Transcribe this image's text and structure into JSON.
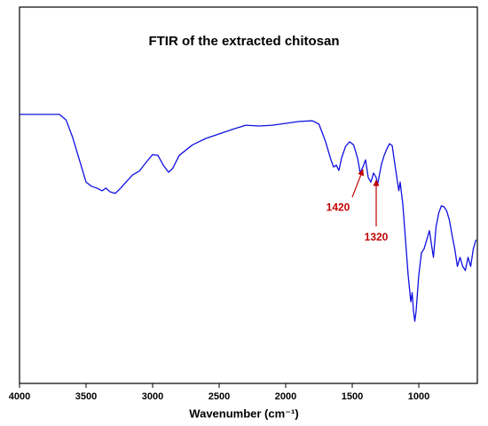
{
  "chart_data": {
    "type": "line",
    "title": "FTIR of the extracted chitosan",
    "xlabel": "Wavenumber (cm⁻¹)",
    "color": "#1010e0",
    "x": [
      4000,
      3700,
      3650,
      3600,
      3550,
      3500,
      3460,
      3420,
      3380,
      3350,
      3320,
      3280,
      3240,
      3200,
      3150,
      3100,
      3050,
      3000,
      2960,
      2920,
      2880,
      2850,
      2800,
      2700,
      2600,
      2500,
      2400,
      2300,
      2200,
      2100,
      2000,
      1900,
      1800,
      1750,
      1700,
      1660,
      1640,
      1620,
      1600,
      1580,
      1550,
      1520,
      1490,
      1460,
      1440,
      1420,
      1400,
      1380,
      1360,
      1340,
      1320,
      1310,
      1280,
      1260,
      1240,
      1220,
      1200,
      1180,
      1160,
      1150,
      1140,
      1120,
      1100,
      1080,
      1060,
      1050,
      1040,
      1030,
      1020,
      1000,
      980,
      960,
      940,
      920,
      900,
      890,
      870,
      850,
      830,
      810,
      790,
      770,
      750,
      730,
      710,
      690,
      670,
      650,
      630,
      610,
      590,
      570
    ],
    "values": [
      71.5,
      71.5,
      70.0,
      65.3,
      59.4,
      53.5,
      52.4,
      51.9,
      51.2,
      51.9,
      50.9,
      50.5,
      51.9,
      53.5,
      55.4,
      56.4,
      58.7,
      60.8,
      60.6,
      58.0,
      56.1,
      57.1,
      60.6,
      63.4,
      65.1,
      66.3,
      67.5,
      68.6,
      68.4,
      68.6,
      69.1,
      69.6,
      69.8,
      68.9,
      64.2,
      59.4,
      57.5,
      58.0,
      56.6,
      59.9,
      63.0,
      64.2,
      63.4,
      59.9,
      55.9,
      57.5,
      59.4,
      54.7,
      53.5,
      55.9,
      54.7,
      52.8,
      58.3,
      60.6,
      62.3,
      63.7,
      63.2,
      58.3,
      53.5,
      51.2,
      53.5,
      47.6,
      38.2,
      28.8,
      21.7,
      24.1,
      19.3,
      16.5,
      19.3,
      28.8,
      34.7,
      35.8,
      38.2,
      40.6,
      35.8,
      33.5,
      41.7,
      45.3,
      47.2,
      46.9,
      45.8,
      43.4,
      39.4,
      35.8,
      31.1,
      33.5,
      31.1,
      30.0,
      33.5,
      31.1,
      35.8,
      38.2
    ],
    "xlim": [
      4000,
      560
    ],
    "ylim": [
      0,
      100
    ],
    "xticks": [
      4000,
      3500,
      3000,
      2500,
      2000,
      1500,
      1000
    ],
    "annotations": [
      {
        "text": "1420",
        "x": 1420,
        "color": "#c00000"
      },
      {
        "text": "1320",
        "x": 1320,
        "color": "#c00000"
      }
    ]
  }
}
